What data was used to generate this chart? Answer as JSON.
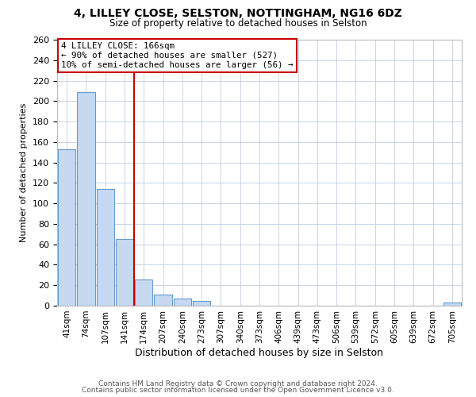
{
  "title": "4, LILLEY CLOSE, SELSTON, NOTTINGHAM, NG16 6DZ",
  "subtitle": "Size of property relative to detached houses in Selston",
  "xlabel": "Distribution of detached houses by size in Selston",
  "ylabel": "Number of detached properties",
  "bar_labels": [
    "41sqm",
    "74sqm",
    "107sqm",
    "141sqm",
    "174sqm",
    "207sqm",
    "240sqm",
    "273sqm",
    "307sqm",
    "340sqm",
    "373sqm",
    "406sqm",
    "439sqm",
    "473sqm",
    "506sqm",
    "539sqm",
    "572sqm",
    "605sqm",
    "639sqm",
    "672sqm",
    "705sqm"
  ],
  "bar_values": [
    153,
    209,
    114,
    65,
    26,
    11,
    7,
    5,
    0,
    0,
    0,
    0,
    0,
    0,
    0,
    0,
    0,
    0,
    0,
    0,
    3
  ],
  "bar_color": "#c6d9f0",
  "bar_edge_color": "#6699cc",
  "vline_x": 4.0,
  "vline_color": "#cc0000",
  "ylim": [
    0,
    260
  ],
  "yticks": [
    0,
    20,
    40,
    60,
    80,
    100,
    120,
    140,
    160,
    180,
    200,
    220,
    240,
    260
  ],
  "annotation_title": "4 LILLEY CLOSE: 166sqm",
  "annotation_line1": "← 90% of detached houses are smaller (527)",
  "annotation_line2": "10% of semi-detached houses are larger (56) →",
  "annotation_box_color": "#cc0000",
  "footer_line1": "Contains HM Land Registry data © Crown copyright and database right 2024.",
  "footer_line2": "Contains public sector information licensed under the Open Government Licence v3.0.",
  "background_color": "#ffffff",
  "grid_color": "#c8d4e8"
}
